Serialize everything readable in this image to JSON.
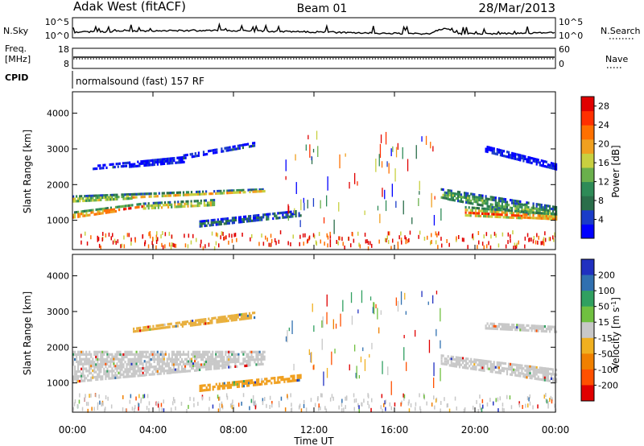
{
  "header": {
    "station": "Adak West (fitACF)",
    "beam": "Beam 01",
    "date": "28/Mar/2013"
  },
  "strips": {
    "noise": {
      "left_label": "N.Sky",
      "right_label": "N.Search",
      "left_ticks": [
        "10^5",
        "10^0"
      ],
      "right_ticks": [
        "10^5",
        "10^0"
      ]
    },
    "freq": {
      "left_label_line1": "Freq.",
      "left_label_line2": "[MHz]",
      "right_label": "Nave",
      "left_ticks": [
        "18",
        "8"
      ],
      "right_ticks": [
        "60",
        "0"
      ]
    },
    "cpid": {
      "label": "CPID",
      "text": "normalsound (fast) 157 RF"
    }
  },
  "chart_data": [
    {
      "type": "heatmap",
      "panel": "power",
      "ylabel": "Slant Range [km]",
      "xlabel": "",
      "xlim": [
        0,
        24
      ],
      "ylim": [
        180,
        4600
      ],
      "y_ticks": [
        1000,
        2000,
        3000,
        4000
      ],
      "x_ticks": [
        "00:00",
        "04:00",
        "08:00",
        "12:00",
        "16:00",
        "20:00",
        "00:00"
      ],
      "colorbar": {
        "label": "Power [dB]",
        "ticks": [
          4,
          8,
          12,
          16,
          20,
          24,
          28
        ],
        "range": [
          0,
          30
        ],
        "colors": [
          "#0000ff",
          "#1a3cc8",
          "#2a6e4a",
          "#2e8b57",
          "#6ab04c",
          "#c8d040",
          "#f0a020",
          "#ff7000",
          "#ff3000",
          "#e00000"
        ]
      },
      "echo_regions": [
        {
          "t": [
            0.0,
            9.5
          ],
          "r_start": [
            1500,
            1800
          ],
          "r_end": [
            1700,
            1900
          ],
          "level": 0.6
        },
        {
          "t": [
            0.0,
            3.5
          ],
          "r_start": [
            1050,
            1350
          ],
          "r_end": [
            1250,
            1500
          ],
          "level": 0.85
        },
        {
          "t": [
            3.5,
            7.0
          ],
          "r_start": [
            1300,
            1400
          ],
          "r_end": [
            1500,
            1600
          ],
          "level": 0.65
        },
        {
          "t": [
            6.3,
            11.3
          ],
          "r_start": [
            800,
            1100
          ],
          "r_end": [
            1000,
            1300
          ],
          "level": 0.25
        },
        {
          "t": [
            1.0,
            5.5
          ],
          "r_start": [
            2400,
            2600
          ],
          "r_end": [
            2550,
            2800
          ],
          "level": 0.1
        },
        {
          "t": [
            5.5,
            9.0
          ],
          "r_start": [
            2700,
            3050
          ],
          "r_end": [
            2850,
            3200
          ],
          "level": 0.12
        },
        {
          "t": [
            18.3,
            24.0
          ],
          "r_start": [
            1600,
            1000
          ],
          "r_end": [
            1900,
            1400
          ],
          "level": 0.45
        },
        {
          "t": [
            19.5,
            24.0
          ],
          "r_start": [
            1100,
            1000
          ],
          "r_end": [
            1400,
            1200
          ],
          "level": 0.8
        },
        {
          "t": [
            20.5,
            24.0
          ],
          "r_start": [
            2900,
            2400
          ],
          "r_end": [
            3100,
            2600
          ],
          "level": 0.1
        }
      ]
    },
    {
      "type": "heatmap",
      "panel": "velocity",
      "ylabel": "Slant Range [km]",
      "xlabel": "Time UT",
      "xlim": [
        0,
        24
      ],
      "ylim": [
        180,
        4600
      ],
      "y_ticks": [
        1000,
        2000,
        3000,
        4000
      ],
      "x_ticks": [
        "00:00",
        "04:00",
        "08:00",
        "12:00",
        "16:00",
        "20:00",
        "00:00"
      ],
      "colorbar": {
        "label": "Velocity [m s^-1]",
        "ticks": [
          200,
          100,
          50,
          15,
          -15,
          -50,
          -100,
          -200
        ],
        "colors": [
          "#2030c0",
          "#3070b0",
          "#30a060",
          "#70c040",
          "#c8c8c8",
          "#f0b020",
          "#f08000",
          "#ff5000",
          "#e00000"
        ]
      },
      "echo_regions": [
        {
          "t": [
            0.0,
            9.5
          ],
          "r_start": [
            1000,
            1500
          ],
          "r_end": [
            1900,
            1900
          ],
          "color": "#c8c8c8"
        },
        {
          "t": [
            3.0,
            9.0
          ],
          "r_start": [
            2400,
            2800
          ],
          "r_end": [
            2550,
            3000
          ],
          "color": "#e8b040"
        },
        {
          "t": [
            6.3,
            11.3
          ],
          "r_start": [
            750,
            1050
          ],
          "r_end": [
            950,
            1250
          ],
          "color": "#f0a020"
        },
        {
          "t": [
            18.3,
            24.0
          ],
          "r_start": [
            1500,
            1000
          ],
          "r_end": [
            1800,
            1400
          ],
          "color": "#c8c8c8"
        },
        {
          "t": [
            20.5,
            24.0
          ],
          "r_start": [
            2500,
            2400
          ],
          "r_end": [
            2700,
            2600
          ],
          "color": "#c8c8c8"
        }
      ]
    }
  ]
}
